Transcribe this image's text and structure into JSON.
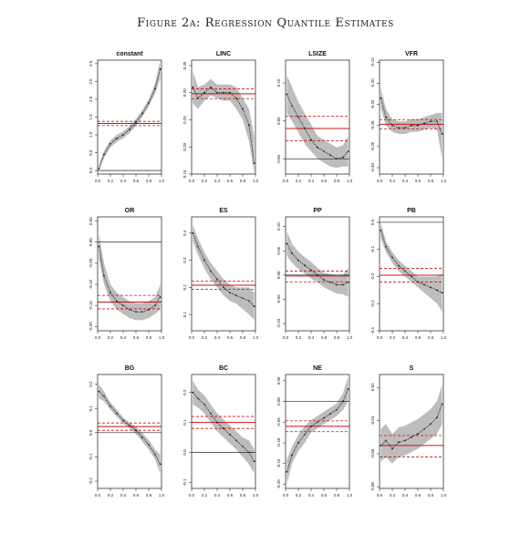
{
  "title": "Figure 2a: Regression Quantile Estimates",
  "chart_data": [
    {
      "type": "line",
      "title": "constant",
      "x": [
        0.02,
        0.1,
        0.2,
        0.3,
        0.4,
        0.5,
        0.6,
        0.7,
        0.8,
        0.9,
        0.98
      ],
      "series": [
        {
          "values": [
            0.05,
            0.45,
            0.75,
            0.9,
            1.0,
            1.15,
            1.35,
            1.6,
            1.9,
            2.3,
            2.85
          ]
        },
        {
          "values": [
            0.0,
            0.35,
            0.65,
            0.8,
            0.9,
            1.05,
            1.25,
            1.5,
            1.8,
            2.15,
            2.6
          ]
        },
        {
          "values": [
            0.15,
            0.55,
            0.85,
            1.0,
            1.1,
            1.25,
            1.45,
            1.7,
            2.0,
            2.45,
            3.1
          ]
        }
      ],
      "ols": 1.32,
      "ols_lo": 1.26,
      "ols_hi": 1.38,
      "zero": 0,
      "xlim": [
        0,
        1
      ],
      "ylim": [
        -0.1,
        3.1
      ],
      "yticks": [
        "0.0",
        "0.5",
        "1.0",
        "1.5",
        "2.0",
        "2.5",
        "3.0"
      ],
      "xticks": [
        "0.0",
        "0.2",
        "0.4",
        "0.6",
        "0.8",
        "1.0"
      ]
    },
    {
      "type": "line",
      "title": "LINC",
      "x": [
        0.02,
        0.1,
        0.2,
        0.3,
        0.4,
        0.5,
        0.6,
        0.7,
        0.8,
        0.9,
        0.98
      ],
      "series": [
        {
          "values": [
            0.31,
            0.29,
            0.3,
            0.31,
            0.3,
            0.3,
            0.3,
            0.29,
            0.27,
            0.24,
            0.17
          ]
        },
        {
          "values": [
            0.28,
            0.27,
            0.285,
            0.295,
            0.29,
            0.285,
            0.285,
            0.27,
            0.25,
            0.21,
            0.13
          ]
        },
        {
          "values": [
            0.34,
            0.31,
            0.315,
            0.325,
            0.315,
            0.315,
            0.315,
            0.31,
            0.29,
            0.27,
            0.22
          ]
        }
      ],
      "ols": 0.298,
      "ols_lo": 0.289,
      "ols_hi": 0.307,
      "zero": null,
      "xlim": [
        0,
        1
      ],
      "ylim": [
        0.15,
        0.36
      ],
      "yticks": [
        "0.15",
        "0.20",
        "0.25",
        "0.30",
        "0.35"
      ],
      "xticks": [
        "0.0",
        "0.2",
        "0.4",
        "0.6",
        "0.8",
        "1.0"
      ]
    },
    {
      "type": "line",
      "title": "LSIZE",
      "x": [
        0.02,
        0.1,
        0.2,
        0.3,
        0.4,
        0.5,
        0.6,
        0.7,
        0.8,
        0.9,
        0.98
      ],
      "series": [
        {
          "values": [
            0.085,
            0.07,
            0.055,
            0.04,
            0.025,
            0.015,
            0.01,
            0.005,
            0.0,
            0.002,
            0.01
          ]
        },
        {
          "values": [
            0.06,
            0.05,
            0.035,
            0.02,
            0.01,
            0.0,
            -0.005,
            -0.01,
            -0.012,
            -0.01,
            -0.01
          ]
        },
        {
          "values": [
            0.11,
            0.095,
            0.075,
            0.06,
            0.045,
            0.03,
            0.025,
            0.02,
            0.015,
            0.018,
            0.03
          ]
        }
      ],
      "ols": 0.04,
      "ols_lo": 0.024,
      "ols_hi": 0.056,
      "zero": 0,
      "xlim": [
        0,
        1
      ],
      "ylim": [
        -0.02,
        0.13
      ],
      "yticks": [
        "0.00",
        "0.05",
        "0.10"
      ],
      "xticks": [
        "0.0",
        "0.2",
        "0.4",
        "0.6",
        "0.8",
        "1.0"
      ]
    },
    {
      "type": "line",
      "title": "VFR",
      "x": [
        0.02,
        0.1,
        0.2,
        0.3,
        0.4,
        0.5,
        0.6,
        0.7,
        0.8,
        0.9,
        0.98
      ],
      "series": [
        {
          "values": [
            -0.235,
            -0.28,
            -0.3,
            -0.305,
            -0.305,
            -0.3,
            -0.3,
            -0.295,
            -0.29,
            -0.29,
            -0.32
          ]
        },
        {
          "values": [
            -0.26,
            -0.3,
            -0.315,
            -0.32,
            -0.32,
            -0.315,
            -0.315,
            -0.31,
            -0.305,
            -0.31,
            -0.38
          ]
        },
        {
          "values": [
            -0.21,
            -0.26,
            -0.285,
            -0.29,
            -0.29,
            -0.285,
            -0.285,
            -0.28,
            -0.275,
            -0.27,
            -0.27
          ]
        }
      ],
      "ols": -0.297,
      "ols_lo": -0.308,
      "ols_hi": -0.286,
      "zero": null,
      "xlim": [
        0,
        1
      ],
      "ylim": [
        -0.415,
        -0.145
      ],
      "yticks": [
        "-0.40",
        "-0.35",
        "-0.30",
        "-0.25",
        "-0.20",
        "-0.15"
      ],
      "xticks": [
        "0.0",
        "0.2",
        "0.4",
        "0.6",
        "0.8",
        "1.0"
      ]
    },
    {
      "type": "line",
      "title": "OR",
      "x": [
        0.02,
        0.1,
        0.2,
        0.3,
        0.4,
        0.5,
        0.6,
        0.7,
        0.8,
        0.9,
        0.98
      ],
      "series": [
        {
          "values": [
            -0.01,
            -0.08,
            -0.12,
            -0.14,
            -0.15,
            -0.16,
            -0.165,
            -0.165,
            -0.16,
            -0.15,
            -0.13
          ]
        },
        {
          "values": [
            -0.04,
            -0.1,
            -0.14,
            -0.16,
            -0.17,
            -0.18,
            -0.185,
            -0.185,
            -0.18,
            -0.17,
            -0.16
          ]
        },
        {
          "values": [
            0.02,
            -0.05,
            -0.1,
            -0.12,
            -0.13,
            -0.14,
            -0.145,
            -0.145,
            -0.14,
            -0.13,
            -0.1
          ]
        }
      ],
      "ols": -0.142,
      "ols_lo": -0.158,
      "ols_hi": -0.126,
      "zero": 0,
      "xlim": [
        0,
        1
      ],
      "ylim": [
        -0.21,
        0.06
      ],
      "yticks": [
        "-0.20",
        "-0.15",
        "-0.10",
        "-0.05",
        "0.00",
        "0.05"
      ],
      "xticks": [
        "0.0",
        "0.2",
        "0.4",
        "0.6",
        "0.8",
        "1.0"
      ]
    },
    {
      "type": "line",
      "title": "ES",
      "x": [
        0.02,
        0.1,
        0.2,
        0.3,
        0.4,
        0.5,
        0.6,
        0.7,
        0.8,
        0.9,
        0.98
      ],
      "series": [
        {
          "values": [
            0.4,
            0.35,
            0.3,
            0.26,
            0.23,
            0.2,
            0.18,
            0.17,
            0.16,
            0.15,
            0.13
          ]
        },
        {
          "values": [
            0.37,
            0.32,
            0.27,
            0.23,
            0.2,
            0.17,
            0.15,
            0.14,
            0.12,
            0.1,
            0.08
          ]
        },
        {
          "values": [
            0.43,
            0.38,
            0.33,
            0.29,
            0.26,
            0.23,
            0.21,
            0.2,
            0.2,
            0.2,
            0.18
          ]
        }
      ],
      "ols": 0.208,
      "ols_lo": 0.193,
      "ols_hi": 0.223,
      "zero": null,
      "xlim": [
        0,
        1
      ],
      "ylim": [
        0.04,
        0.46
      ],
      "yticks": [
        "0.1",
        "0.2",
        "0.3",
        "0.4"
      ],
      "xticks": [
        "0.0",
        "0.2",
        "0.4",
        "0.6",
        "0.8",
        "1.0"
      ]
    },
    {
      "type": "line",
      "title": "PP",
      "x": [
        0.02,
        0.1,
        0.2,
        0.3,
        0.4,
        0.5,
        0.6,
        0.7,
        0.8,
        0.9,
        0.98
      ],
      "series": [
        {
          "values": [
            0.065,
            0.045,
            0.03,
            0.02,
            0.01,
            0.0,
            -0.01,
            -0.015,
            -0.02,
            -0.02,
            -0.015
          ]
        },
        {
          "values": [
            0.04,
            0.025,
            0.012,
            0.003,
            -0.007,
            -0.015,
            -0.025,
            -0.032,
            -0.038,
            -0.04,
            -0.045
          ]
        },
        {
          "values": [
            0.09,
            0.065,
            0.048,
            0.037,
            0.027,
            0.015,
            0.005,
            0.002,
            -0.002,
            0.0,
            0.015
          ]
        }
      ],
      "ols": -0.002,
      "ols_lo": -0.014,
      "ols_hi": 0.008,
      "zero": 0,
      "xlim": [
        0,
        1
      ],
      "ylim": [
        -0.115,
        0.12
      ],
      "yticks": [
        "-0.10",
        "-0.05",
        "0.00",
        "0.05",
        "0.10"
      ],
      "xticks": [
        "0.0",
        "0.2",
        "0.4",
        "0.6",
        "0.8",
        "1.0"
      ]
    },
    {
      "type": "line",
      "title": "PB",
      "x": [
        0.02,
        0.1,
        0.2,
        0.3,
        0.4,
        0.5,
        0.6,
        0.7,
        0.8,
        0.9,
        0.98
      ],
      "series": [
        {
          "values": [
            -0.03,
            -0.09,
            -0.13,
            -0.16,
            -0.18,
            -0.2,
            -0.22,
            -0.23,
            -0.24,
            -0.25,
            -0.26
          ]
        },
        {
          "values": [
            -0.06,
            -0.11,
            -0.15,
            -0.18,
            -0.2,
            -0.22,
            -0.24,
            -0.26,
            -0.28,
            -0.3,
            -0.33
          ]
        },
        {
          "values": [
            0.0,
            -0.07,
            -0.11,
            -0.14,
            -0.16,
            -0.18,
            -0.2,
            -0.2,
            -0.2,
            -0.2,
            -0.19
          ]
        }
      ],
      "ols": -0.195,
      "ols_lo": -0.22,
      "ols_hi": -0.17,
      "zero": 0,
      "xlim": [
        0,
        1
      ],
      "ylim": [
        -0.4,
        0.02
      ],
      "yticks": [
        "-0.4",
        "-0.3",
        "-0.2",
        "-0.1",
        "0.0"
      ],
      "xticks": [
        "0.0",
        "0.2",
        "0.4",
        "0.6",
        "0.8",
        "1.0"
      ]
    },
    {
      "type": "line",
      "title": "BG",
      "x": [
        0.02,
        0.1,
        0.2,
        0.3,
        0.4,
        0.5,
        0.6,
        0.7,
        0.8,
        0.9,
        0.98
      ],
      "series": [
        {
          "values": [
            0.17,
            0.15,
            0.11,
            0.08,
            0.05,
            0.03,
            0.01,
            -0.02,
            -0.05,
            -0.09,
            -0.13
          ]
        },
        {
          "values": [
            0.14,
            0.13,
            0.095,
            0.065,
            0.037,
            0.018,
            -0.005,
            -0.038,
            -0.07,
            -0.11,
            -0.17
          ]
        },
        {
          "values": [
            0.2,
            0.17,
            0.125,
            0.095,
            0.063,
            0.042,
            0.025,
            -0.002,
            -0.03,
            -0.07,
            -0.09
          ]
        }
      ],
      "ols": 0.025,
      "ols_lo": 0.01,
      "ols_hi": 0.04,
      "zero": 0,
      "xlim": [
        0,
        1
      ],
      "ylim": [
        -0.23,
        0.24
      ],
      "yticks": [
        "-0.2",
        "-0.1",
        "0.0",
        "0.1",
        "0.2"
      ],
      "xticks": [
        "0.0",
        "0.2",
        "0.4",
        "0.6",
        "0.8",
        "1.0"
      ]
    },
    {
      "type": "line",
      "title": "BC",
      "x": [
        0.02,
        0.1,
        0.2,
        0.3,
        0.4,
        0.5,
        0.6,
        0.7,
        0.8,
        0.9,
        0.98
      ],
      "series": [
        {
          "values": [
            0.2,
            0.18,
            0.16,
            0.13,
            0.1,
            0.08,
            0.06,
            0.04,
            0.02,
            0.0,
            -0.03
          ]
        },
        {
          "values": [
            0.16,
            0.15,
            0.13,
            0.1,
            0.07,
            0.05,
            0.03,
            0.01,
            -0.015,
            -0.04,
            -0.07
          ]
        },
        {
          "values": [
            0.24,
            0.21,
            0.19,
            0.16,
            0.13,
            0.11,
            0.09,
            0.07,
            0.05,
            0.04,
            0.01
          ]
        }
      ],
      "ols": 0.1,
      "ols_lo": 0.08,
      "ols_hi": 0.12,
      "zero": 0,
      "xlim": [
        0,
        1
      ],
      "ylim": [
        -0.12,
        0.26
      ],
      "yticks": [
        "-0.1",
        "0.0",
        "0.1",
        "0.2"
      ],
      "xticks": [
        "0.0",
        "0.2",
        "0.4",
        "0.6",
        "0.8",
        "1.0"
      ]
    },
    {
      "type": "line",
      "title": "NE",
      "x": [
        0.02,
        0.1,
        0.2,
        0.3,
        0.4,
        0.5,
        0.6,
        0.7,
        0.8,
        0.9,
        0.98
      ],
      "series": [
        {
          "values": [
            -0.17,
            -0.13,
            -0.1,
            -0.08,
            -0.06,
            -0.05,
            -0.04,
            -0.03,
            -0.02,
            0.0,
            0.03
          ]
        },
        {
          "values": [
            -0.2,
            -0.15,
            -0.12,
            -0.1,
            -0.075,
            -0.065,
            -0.055,
            -0.045,
            -0.035,
            -0.02,
            0.0
          ]
        },
        {
          "values": [
            -0.14,
            -0.11,
            -0.08,
            -0.06,
            -0.045,
            -0.035,
            -0.025,
            -0.015,
            -0.005,
            0.02,
            0.06
          ]
        }
      ],
      "ols": -0.06,
      "ols_lo": -0.073,
      "ols_hi": -0.047,
      "zero": 0,
      "xlim": [
        0,
        1
      ],
      "ylim": [
        -0.21,
        0.065
      ],
      "yticks": [
        "-0.20",
        "-0.15",
        "-0.10",
        "-0.05",
        "0.00",
        "0.05"
      ],
      "xticks": [
        "0.0",
        "0.2",
        "0.4",
        "0.6",
        "0.8",
        "1.0"
      ]
    },
    {
      "type": "line",
      "title": "S",
      "x": [
        0.02,
        0.1,
        0.2,
        0.3,
        0.4,
        0.5,
        0.6,
        0.7,
        0.8,
        0.9,
        0.98
      ],
      "series": [
        {
          "values": [
            -0.055,
            -0.052,
            -0.057,
            -0.053,
            -0.052,
            -0.05,
            -0.048,
            -0.045,
            -0.042,
            -0.038,
            -0.03
          ]
        },
        {
          "values": [
            -0.065,
            -0.062,
            -0.066,
            -0.062,
            -0.061,
            -0.059,
            -0.057,
            -0.054,
            -0.051,
            -0.048,
            -0.042
          ]
        },
        {
          "values": [
            -0.045,
            -0.042,
            -0.048,
            -0.044,
            -0.043,
            -0.041,
            -0.039,
            -0.036,
            -0.033,
            -0.028,
            -0.018
          ]
        }
      ],
      "ols": -0.055,
      "ols_lo": -0.062,
      "ols_hi": -0.049,
      "zero": null,
      "xlim": [
        0,
        1
      ],
      "ylim": [
        -0.081,
        -0.012
      ],
      "yticks": [
        "-0.08",
        "-0.06",
        "-0.04",
        "-0.02"
      ],
      "xticks": [
        "0.0",
        "0.2",
        "0.4",
        "0.6",
        "0.8",
        "1.0"
      ]
    }
  ]
}
